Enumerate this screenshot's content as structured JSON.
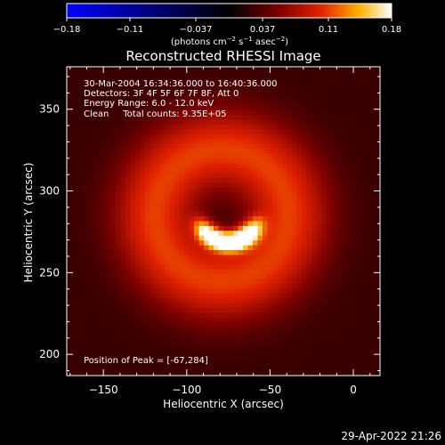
{
  "chart_data": {
    "type": "heatmap",
    "title": "Reconstructed RHESSI Image",
    "xlabel": "Heliocentric X (arcsec)",
    "ylabel": "Heliocentric Y (arcsec)",
    "xlim": [
      -172,
      16
    ],
    "ylim": [
      187,
      376
    ],
    "x_ticks": [
      -150,
      -100,
      -50,
      0
    ],
    "x_tick_labels": [
      "−150",
      "−100",
      "−50",
      "0"
    ],
    "y_ticks": [
      200,
      250,
      300,
      350
    ],
    "y_tick_labels": [
      "200",
      "250",
      "300",
      "350"
    ],
    "colorbar": {
      "range": [
        -0.18,
        0.18
      ],
      "ticks": [
        -0.18,
        -0.11,
        -0.037,
        0.037,
        0.11,
        0.18
      ],
      "tick_labels": [
        "−0.18",
        "−0.11",
        "−0.037",
        "0.037",
        "0.11",
        "0.18"
      ],
      "label_main": "(photons cm",
      "label_exp1": "−2",
      "label_mid1": " s",
      "label_exp2": "−1",
      "label_mid2": " asec",
      "label_exp3": "−2",
      "label_end": ")",
      "colormap": "blue-black-red-yellow-white"
    },
    "annotations": [
      "30-Mar-2004 16:34:36.000 to 16:40:36.000",
      "Detectors: 3F 4F 5F 6F 7F 8F, Att 0",
      "Energy Range: 6.0 - 12.0 keV",
      "Clean     Total counts: 9.35E+05"
    ],
    "peak_label": "Position of Peak = [-67,284]",
    "peak": {
      "x": -67,
      "y": 284
    },
    "ring": {
      "x": -79,
      "y": 285,
      "radius": 40,
      "width": 26,
      "level": 0.085
    },
    "arc": {
      "x": -75,
      "y": 287,
      "radius": 18,
      "center_angle_deg": 270,
      "half_width_deg": 70,
      "level": 0.19
    },
    "background_level": 0.025,
    "colors": {
      "bg": "#000000",
      "text": "#ffffff"
    }
  },
  "timestamp": "29-Apr-2022 21:26"
}
